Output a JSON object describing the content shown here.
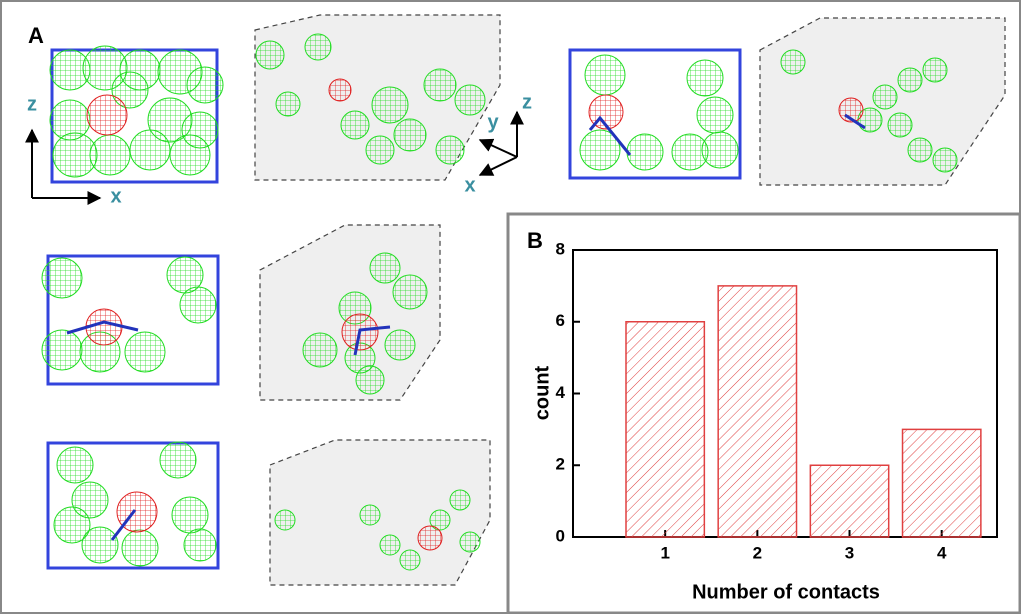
{
  "panel_labels": [
    "A",
    "B"
  ],
  "axis_labels": [
    "z",
    "x",
    "y",
    "z",
    "x"
  ],
  "chart_data": {
    "type": "bar",
    "x": [
      1,
      2,
      3,
      4
    ],
    "values": [
      6,
      7,
      2,
      3
    ],
    "color": "#e04040",
    "xlim": [
      0,
      4.6
    ],
    "xticks": [
      1,
      2,
      3,
      4
    ],
    "ylim": [
      0,
      8
    ],
    "yticks": [
      0,
      2,
      4,
      6,
      8
    ],
    "xlabel": "Number of contacts",
    "ylabel": "count",
    "hatch": true
  }
}
